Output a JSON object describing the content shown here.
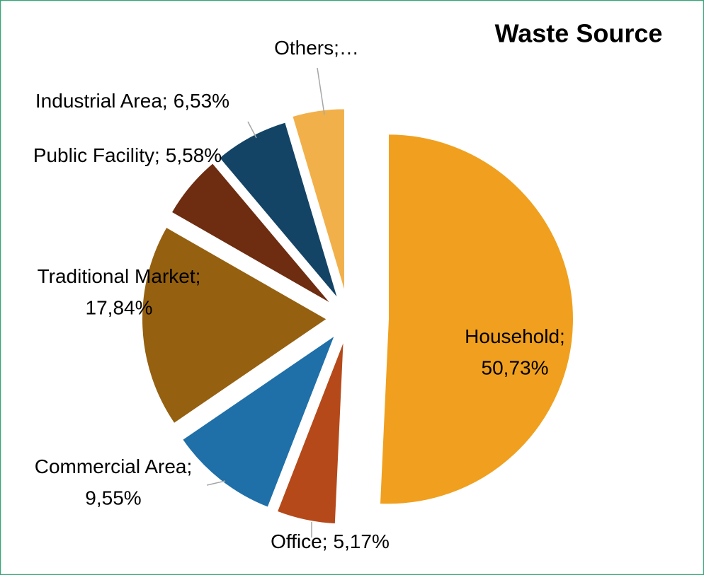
{
  "chart_data": {
    "type": "pie",
    "title": "Waste Source",
    "categories": [
      "Household",
      "Office",
      "Commercial Area",
      "Traditional Market",
      "Public Facility",
      "Industrial Area",
      "Others"
    ],
    "values": [
      50.73,
      5.17,
      9.55,
      17.84,
      5.58,
      6.53,
      4.6
    ],
    "value_labels": [
      "50,73%",
      "5,17%",
      "9,55%",
      "17,84%",
      "5,58%",
      "6,53%",
      "…"
    ],
    "label_separator": ";",
    "colors": [
      "#f0a01e",
      "#b5491a",
      "#1f6fa8",
      "#956010",
      "#6e2c10",
      "#134466",
      "#f2b04a"
    ]
  }
}
